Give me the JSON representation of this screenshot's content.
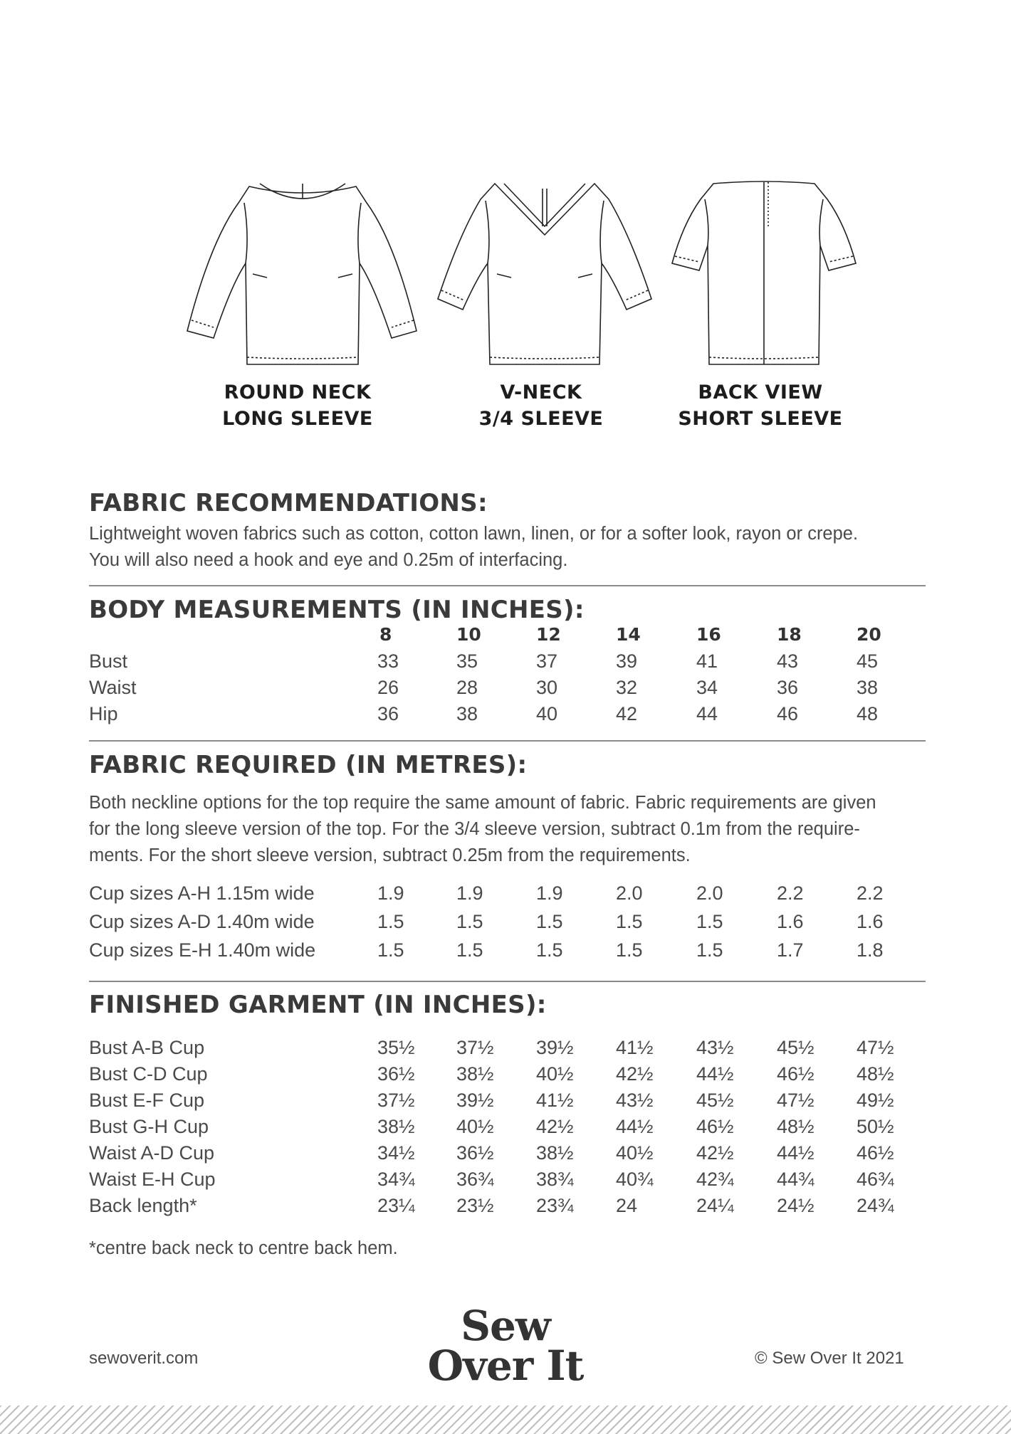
{
  "illustrations": [
    {
      "icon": "round-neck-long-sleeve-top-sketch",
      "caption_line1": "ROUND NECK",
      "caption_line2": "LONG SLEEVE"
    },
    {
      "icon": "v-neck-three-quarter-sleeve-top-sketch",
      "caption_line1": "V-NECK",
      "caption_line2": "3/4 SLEEVE"
    },
    {
      "icon": "back-view-short-sleeve-top-sketch",
      "caption_line1": "BACK VIEW",
      "caption_line2": "SHORT SLEEVE"
    }
  ],
  "fabric_recommendations": {
    "heading": "FABRIC RECOMMENDATIONS:",
    "line1": "Lightweight woven fabrics such as cotton, cotton lawn, linen, or for a softer look, rayon or crepe.",
    "line2": "You will also need a hook and eye and 0.25m of interfacing."
  },
  "body_measurements": {
    "heading": "BODY MEASUREMENTS (IN INCHES):",
    "sizes": [
      "8",
      "10",
      "12",
      "14",
      "16",
      "18",
      "20"
    ],
    "rows": [
      {
        "label": "Bust",
        "values": [
          "33",
          "35",
          "37",
          "39",
          "41",
          "43",
          "45"
        ]
      },
      {
        "label": "Waist",
        "values": [
          "26",
          "28",
          "30",
          "32",
          "34",
          "36",
          "38"
        ]
      },
      {
        "label": "Hip",
        "values": [
          "36",
          "38",
          "40",
          "42",
          "44",
          "46",
          "48"
        ]
      }
    ]
  },
  "fabric_required": {
    "heading": "FABRIC REQUIRED (IN METRES):",
    "line1": "Both neckline options for the top require the same amount of fabric. Fabric requirements are given",
    "line2": "for the long sleeve version of the top. For the 3/4 sleeve version, subtract 0.1m from the require-",
    "line3": "ments. For the short sleeve version, subtract 0.25m from the requirements.",
    "rows": [
      {
        "label": "Cup sizes A-H 1.15m wide",
        "values": [
          "1.9",
          "1.9",
          "1.9",
          "2.0",
          "2.0",
          "2.2",
          "2.2"
        ]
      },
      {
        "label": "Cup sizes A-D 1.40m wide",
        "values": [
          "1.5",
          "1.5",
          "1.5",
          "1.5",
          "1.5",
          "1.6",
          "1.6"
        ]
      },
      {
        "label": "Cup sizes E-H 1.40m wide",
        "values": [
          "1.5",
          "1.5",
          "1.5",
          "1.5",
          "1.5",
          "1.7",
          "1.8"
        ]
      }
    ]
  },
  "finished_garment": {
    "heading": "FINISHED GARMENT (IN INCHES):",
    "rows": [
      {
        "label": "Bust A-B Cup",
        "values": [
          "35½",
          "37½",
          "39½",
          "41½",
          "43½",
          "45½",
          "47½"
        ]
      },
      {
        "label": "Bust C-D Cup",
        "values": [
          "36½",
          "38½",
          "40½",
          "42½",
          "44½",
          "46½",
          "48½"
        ]
      },
      {
        "label": "Bust E-F Cup",
        "values": [
          "37½",
          "39½",
          "41½",
          "43½",
          "45½",
          "47½",
          "49½"
        ]
      },
      {
        "label": "Bust G-H Cup",
        "values": [
          "38½",
          "40½",
          "42½",
          "44½",
          "46½",
          "48½",
          "50½"
        ]
      },
      {
        "label": "Waist A-D Cup",
        "values": [
          "34½",
          "36½",
          "38½",
          "40½",
          "42½",
          "44½",
          "46½"
        ]
      },
      {
        "label": "Waist E-H Cup",
        "values": [
          "34¾",
          "36¾",
          "38¾",
          "40¾",
          "42¾",
          "44¾",
          "46¾"
        ]
      },
      {
        "label": "Back length*",
        "values": [
          "23¼",
          "23½",
          "23¾",
          "24",
          "24¼",
          "24½",
          "24¾"
        ]
      }
    ],
    "footnote": "*centre back neck to centre back hem."
  },
  "footer": {
    "website": "sewoverit.com",
    "logo_line1": "Sew",
    "logo_line2": "Over It",
    "copyright": "© Sew Over It 2021"
  }
}
